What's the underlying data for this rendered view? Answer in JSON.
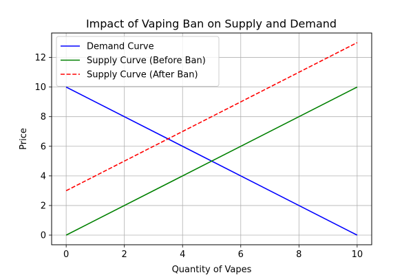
{
  "chart_data": {
    "type": "line",
    "title": "Impact of Vaping Ban on Supply and Demand",
    "xlabel": "Quantity of Vapes",
    "ylabel": "Price",
    "xlim": [
      -0.5,
      10.5
    ],
    "ylim": [
      -0.65,
      13.65
    ],
    "xticks": [
      0,
      2,
      4,
      6,
      8,
      10
    ],
    "yticks": [
      0,
      2,
      4,
      6,
      8,
      10,
      12
    ],
    "grid": true,
    "legend_position": "top-left",
    "series": [
      {
        "name": "Demand Curve",
        "x": [
          0,
          10
        ],
        "y": [
          10,
          0
        ],
        "color": "#0000ff",
        "dash": "solid"
      },
      {
        "name": "Supply Curve (Before Ban)",
        "x": [
          0,
          10
        ],
        "y": [
          0,
          10
        ],
        "color": "#008000",
        "dash": "solid"
      },
      {
        "name": "Supply Curve (After Ban)",
        "x": [
          0,
          10
        ],
        "y": [
          3,
          13
        ],
        "color": "#ff0000",
        "dash": "dashed"
      }
    ]
  }
}
